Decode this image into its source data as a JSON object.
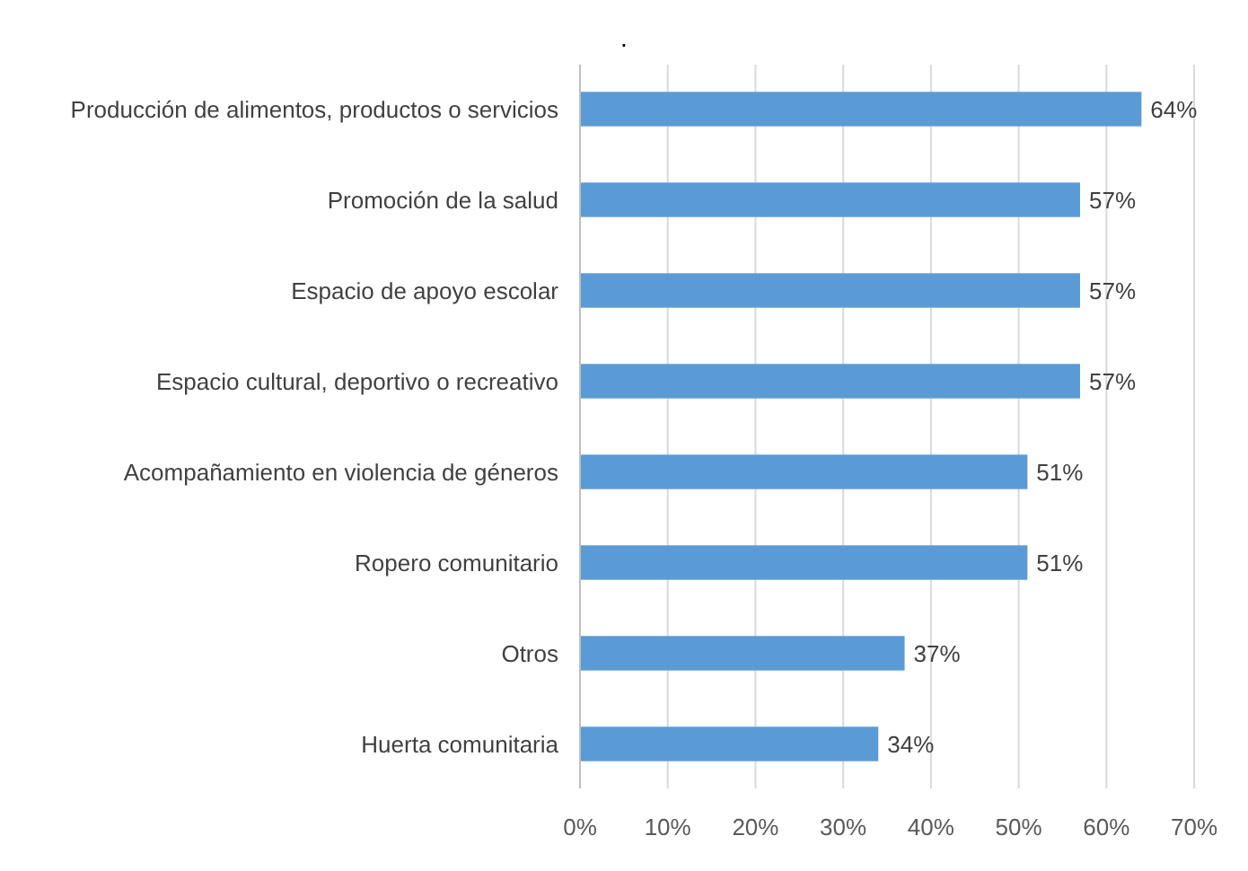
{
  "chart_data": {
    "type": "bar",
    "orientation": "horizontal",
    "title": ".",
    "categories": [
      "Producción de alimentos, productos o servicios",
      "Promoción de la salud",
      "Espacio de apoyo escolar ",
      "Espacio cultural, deportivo o recreativo",
      "Acompañamiento en violencia de géneros",
      "Ropero comunitario",
      "Otros",
      "Huerta comunitaria"
    ],
    "values": [
      64,
      57,
      57,
      57,
      51,
      51,
      37,
      34
    ],
    "value_labels": [
      "64%",
      "57%",
      "57%",
      "57%",
      "51%",
      "51%",
      "37%",
      "34%"
    ],
    "color": "#5b9bd5",
    "xlim": [
      0,
      70
    ],
    "xticks": [
      {
        "value": 0,
        "label": "0%"
      },
      {
        "value": 10,
        "label": "10%"
      },
      {
        "value": 20,
        "label": "20%"
      },
      {
        "value": 30,
        "label": "30%"
      },
      {
        "value": 40,
        "label": "40%"
      },
      {
        "value": 50,
        "label": "50%"
      },
      {
        "value": 60,
        "label": "60%"
      },
      {
        "value": 70,
        "label": "70%"
      }
    ],
    "grid": "x"
  }
}
